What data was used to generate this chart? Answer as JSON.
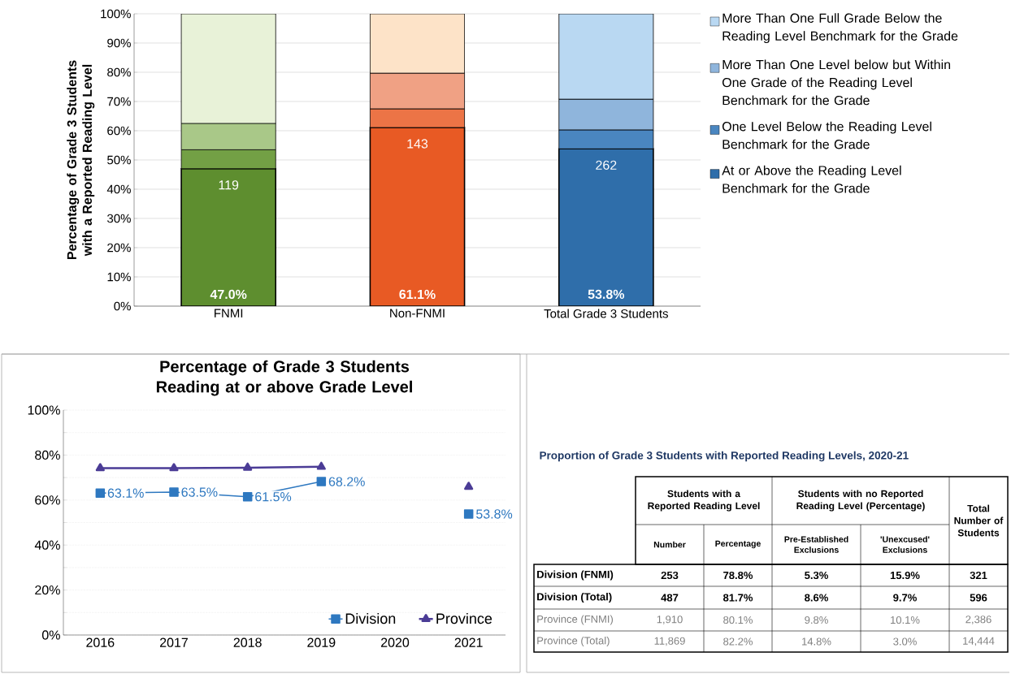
{
  "chart_data": [
    {
      "type": "bar",
      "stacked": true,
      "ylabel": "Percentage of Grade 3 Students with a Reported Reading Level",
      "categories": [
        "FNMI",
        "Non-FNMI",
        "Total Grade 3 Students"
      ],
      "series": [
        {
          "name": "At or Above the Reading Level Benchmark for the Grade",
          "colors": [
            "#5e8e2f",
            "#e85a24",
            "#2f6eaa"
          ],
          "values": [
            47.0,
            61.1,
            53.8
          ],
          "value_labels": [
            "47.0%",
            "61.1%",
            "53.8%"
          ]
        },
        {
          "name": "One Level Below the Reading Level Benchmark for the Grade",
          "colors": [
            "#73a045",
            "#ec7446",
            "#4a86c0"
          ],
          "values": [
            6.5,
            6.4,
            6.5
          ]
        },
        {
          "name": "More Than One Level below but Within One Grade of the Reading Level Benchmark for the Grade",
          "colors": [
            "#a9c888",
            "#f0a184",
            "#8fb5dc"
          ],
          "values": [
            9.0,
            12.2,
            10.5
          ]
        },
        {
          "name": "More Than One Full Grade Below the Reading Level Benchmark for the Grade",
          "colors": [
            "#e8f2d8",
            "#fde3c8",
            "#b9d8f2"
          ],
          "values": [
            37.5,
            20.3,
            29.2
          ]
        }
      ],
      "annotations": [
        "119",
        "143",
        "262"
      ],
      "ylim": [
        0,
        100
      ],
      "yticks": [
        {
          "value": 0,
          "label": "0%"
        },
        {
          "value": 10,
          "label": "10%"
        },
        {
          "value": 20,
          "label": "20%"
        },
        {
          "value": 30,
          "label": "30%"
        },
        {
          "value": 40,
          "label": "40%"
        },
        {
          "value": 50,
          "label": "50%"
        },
        {
          "value": 60,
          "label": "60%"
        },
        {
          "value": 70,
          "label": "70%"
        },
        {
          "value": 80,
          "label": "80%"
        },
        {
          "value": 90,
          "label": "90%"
        },
        {
          "value": 100,
          "label": "100%"
        }
      ],
      "grid": "y",
      "legend": "right"
    },
    {
      "type": "line",
      "title": "Percentage of Grade 3 Students Reading at or above Grade Level",
      "categories": [
        "2016",
        "2017",
        "2018",
        "2019",
        "2020",
        "2021"
      ],
      "series": [
        {
          "name": "Division",
          "color": "#2e78c0",
          "marker": "square",
          "values": [
            63.1,
            63.5,
            61.5,
            68.2,
            null,
            53.8
          ],
          "value_labels": [
            "63.1%",
            "63.5%",
            "61.5%",
            "68.2%",
            null,
            "53.8%"
          ]
        },
        {
          "name": "Province",
          "color": "#4b3c96",
          "marker": "triangle",
          "values": [
            74.2,
            74.2,
            74.4,
            74.8,
            null,
            65.9
          ]
        }
      ],
      "ylim": [
        0,
        100
      ],
      "yticks": [
        {
          "value": 0,
          "label": "0%"
        },
        {
          "value": 10,
          "label": null
        },
        {
          "value": 20,
          "label": "20%"
        },
        {
          "value": 30,
          "label": null
        },
        {
          "value": 40,
          "label": "40%"
        },
        {
          "value": 50,
          "label": null
        },
        {
          "value": 60,
          "label": "60%"
        },
        {
          "value": 70,
          "label": null
        },
        {
          "value": 80,
          "label": "80%"
        },
        {
          "value": 90,
          "label": null
        },
        {
          "value": 100,
          "label": "100%"
        }
      ],
      "grid": "y",
      "legend": "bottom right",
      "line_style": "solid"
    },
    {
      "type": "other",
      "title": "Proportion of Grade 3 Students with Reported Reading Levels, 2020-21",
      "annotations": [
        "Students with a Reported Reading Level",
        "Students with no Reported Reading Level (Percentage)",
        "Total Number of Students",
        "Number",
        "Percentage",
        "Pre-Established Exclusions",
        "'Unexcused' Exclusions",
        "Division (FNMI)",
        "253",
        "78.8%",
        "5.3%",
        "15.9%",
        "321",
        "Division (Total)",
        "487",
        "81.7%",
        "8.6%",
        "9.7%",
        "596",
        "Province (FNMI)",
        "1,910",
        "80.1%",
        "9.8%",
        "10.1%",
        "2,386",
        "Province (Total)",
        "11,869",
        "82.2%",
        "14.8%",
        "3.0%",
        "14,444"
      ]
    }
  ]
}
